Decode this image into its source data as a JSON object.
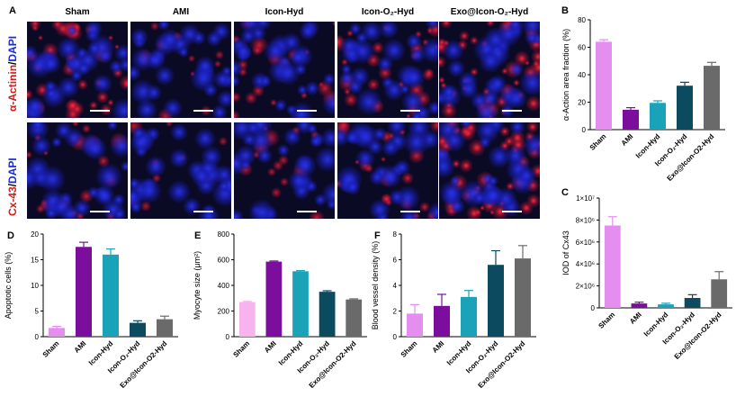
{
  "panel_letters": {
    "A": "A",
    "B": "B",
    "C": "C",
    "D": "D",
    "E": "E",
    "F": "F"
  },
  "panelA": {
    "columns": [
      "Sham",
      "AMI",
      "Icon-Hyd",
      "Icon-O₂-Hyd",
      "Exo@Icon-O₂-Hyd"
    ],
    "row1": {
      "marker": "α-Actinin",
      "sep": "/",
      "counter": "DAPI"
    },
    "row2": {
      "marker": "Cx-43",
      "sep": "/",
      "counter": "DAPI"
    },
    "brightness": {
      "row1": [
        0.75,
        0.1,
        0.35,
        0.55,
        0.9
      ],
      "row2": [
        0.3,
        0.08,
        0.22,
        0.4,
        0.95
      ]
    }
  },
  "chart_data": [
    {
      "id": "B",
      "type": "bar",
      "categories": [
        "Sham",
        "AMI",
        "Icon-Hyd",
        "Icon-O₂-Hyd",
        "Exo@Icon-O2-Hyd"
      ],
      "values": [
        64,
        14.5,
        19.5,
        32,
        46.5
      ],
      "errors": [
        1.5,
        1.5,
        1.5,
        2.5,
        2.5
      ],
      "colors": [
        "#e48ef0",
        "#7b0e9c",
        "#1aa3b8",
        "#0b4a5f",
        "#6a6a6a"
      ],
      "ylabel": "α-Action area fraction (%)",
      "ylim": [
        0,
        80
      ],
      "yticks": [
        0,
        20,
        40,
        60,
        80
      ],
      "ytick_labels": [
        "0",
        "20",
        "40",
        "60",
        "80"
      ]
    },
    {
      "id": "C",
      "type": "bar",
      "categories": [
        "Sham",
        "AMI",
        "Icon-Hyd",
        "Icon-O₂-Hyd",
        "Exo@Icon-O2-Hyd"
      ],
      "values": [
        7500000,
        400000,
        320000,
        900000,
        2600000
      ],
      "errors": [
        800000,
        120000,
        100000,
        300000,
        700000
      ],
      "colors": [
        "#e48ef0",
        "#7b0e9c",
        "#1aa3b8",
        "#0b4a5f",
        "#6a6a6a"
      ],
      "ylabel": "IOD of Cx43",
      "ylim": [
        0,
        10000000
      ],
      "yticks": [
        0,
        2000000,
        4000000,
        6000000,
        8000000,
        10000000
      ],
      "ytick_labels": [
        "0",
        "2×10⁶",
        "4×10⁶",
        "6×10⁶",
        "8×10⁶",
        "1×10⁷"
      ]
    },
    {
      "id": "D",
      "type": "bar",
      "categories": [
        "Sham",
        "AMI",
        "Icon-Hyd",
        "Icon-O₂-Hyd",
        "Exo@Icon-O2-Hyd"
      ],
      "values": [
        1.7,
        17.5,
        16,
        2.7,
        3.4
      ],
      "errors": [
        0.3,
        0.9,
        1.1,
        0.4,
        0.6
      ],
      "colors": [
        "#e48ef0",
        "#7b0e9c",
        "#1aa3b8",
        "#0b4a5f",
        "#6a6a6a"
      ],
      "ylabel": "Apoptotic cells (%)",
      "ylim": [
        0,
        20
      ],
      "yticks": [
        0,
        5,
        10,
        15,
        20
      ],
      "ytick_labels": [
        "0",
        "5",
        "10",
        "15",
        "20"
      ]
    },
    {
      "id": "E",
      "type": "bar",
      "categories": [
        "Sham",
        "AMI",
        "Icon-Hyd",
        "Icon-O₂-Hyd",
        "Exo@Icon-O2-Hyd"
      ],
      "values": [
        270,
        585,
        510,
        350,
        290
      ],
      "errors": [
        5,
        5,
        5,
        8,
        5
      ],
      "colors": [
        "#f7b3ee",
        "#7b0e9c",
        "#1aa3b8",
        "#0b4a5f",
        "#6a6a6a"
      ],
      "ylabel": "Myocyte size (μm²)",
      "ylim": [
        0,
        800
      ],
      "yticks": [
        0,
        200,
        400,
        600,
        800
      ],
      "ytick_labels": [
        "0",
        "200",
        "400",
        "600",
        "800"
      ]
    },
    {
      "id": "F",
      "type": "bar",
      "categories": [
        "Sham",
        "AMI",
        "Icon-Hyd",
        "Icon-O₂-Hyd",
        "Exo@Icon-O2-Hyd"
      ],
      "values": [
        1.8,
        2.4,
        3.1,
        5.6,
        6.1
      ],
      "errors": [
        0.7,
        0.9,
        0.5,
        1.1,
        1.0
      ],
      "colors": [
        "#e48ef0",
        "#7b0e9c",
        "#1aa3b8",
        "#0b4a5f",
        "#6a6a6a"
      ],
      "ylabel": "Blood vessel density (%)",
      "ylim": [
        0,
        8
      ],
      "yticks": [
        0,
        2,
        4,
        6,
        8
      ],
      "ytick_labels": [
        "0",
        "2",
        "4",
        "6",
        "8"
      ]
    }
  ]
}
